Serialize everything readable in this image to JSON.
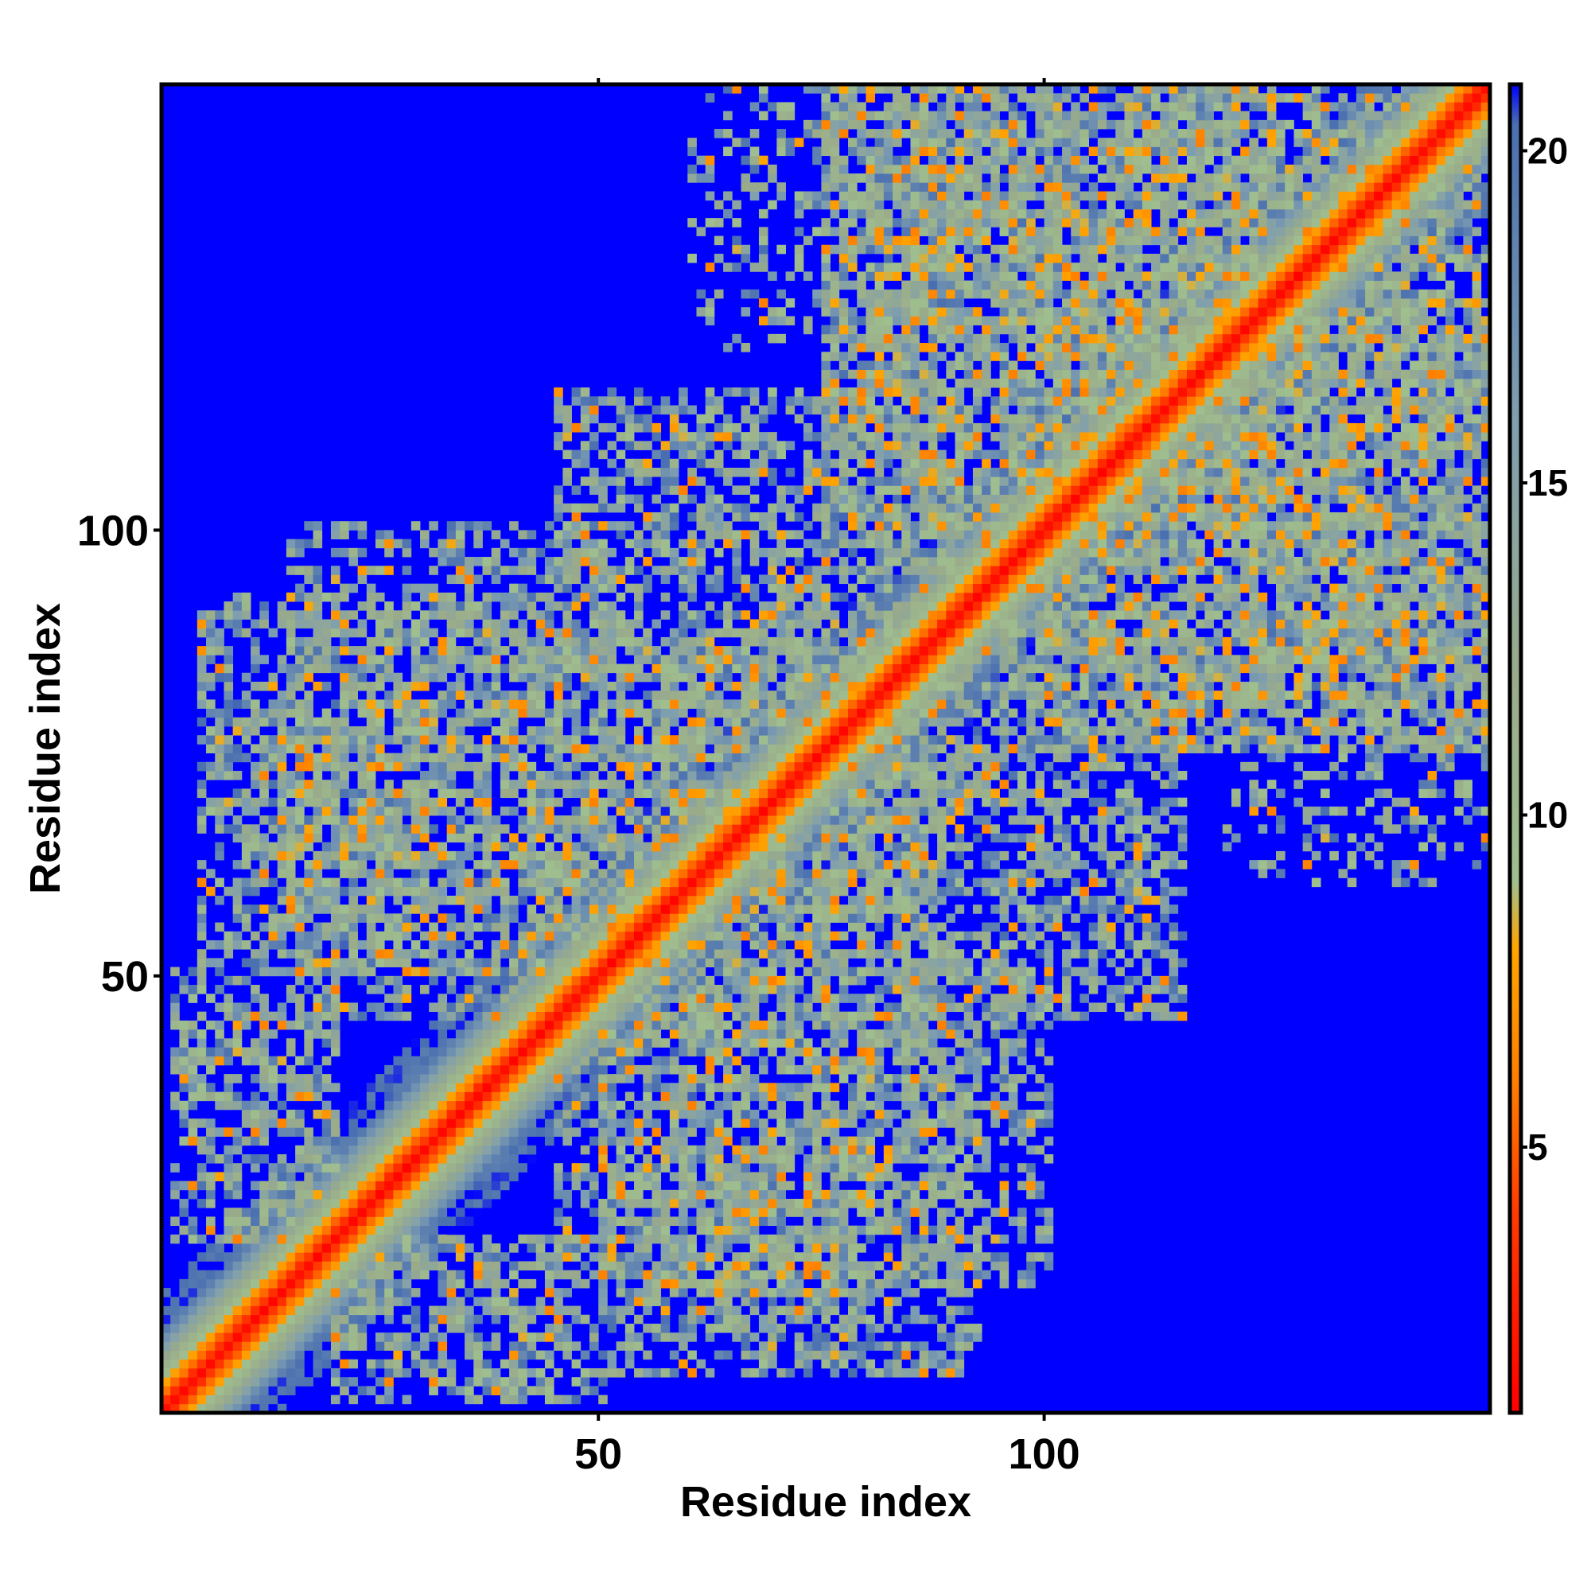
{
  "chart_data": {
    "type": "heatmap",
    "title": "",
    "xlabel": "Residue index",
    "ylabel": "Residue index",
    "xlim": [
      1,
      149
    ],
    "ylim": [
      1,
      149
    ],
    "x_ticks": [
      50,
      100
    ],
    "y_ticks": [
      50,
      100
    ],
    "x_tick_labels": [
      "50",
      "100"
    ],
    "y_tick_labels": [
      "50",
      "100"
    ],
    "colorbar": {
      "range": [
        1,
        21
      ],
      "ticks": [
        5,
        10,
        15,
        20
      ],
      "tick_labels": [
        "5",
        "10",
        "15",
        "20"
      ],
      "stops": [
        {
          "value": 1,
          "color": "#ff0000"
        },
        {
          "value": 4,
          "color": "#ff3a00"
        },
        {
          "value": 6,
          "color": "#ff7f00"
        },
        {
          "value": 8,
          "color": "#ffa500"
        },
        {
          "value": 9,
          "color": "#9fbf8f"
        },
        {
          "value": 12,
          "color": "#9aab8a"
        },
        {
          "value": 16,
          "color": "#7f9fb0"
        },
        {
          "value": 20.4,
          "color": "#4a6fb0"
        },
        {
          "value": 21,
          "color": "#0000ff"
        }
      ]
    },
    "matrix_description": "Symmetric residue-residue distance matrix; diagonal near 1, contacts up to ~20, background (>21) shown blue",
    "diagonal_band": [
      {
        "offset": 0,
        "value": 1.5
      },
      {
        "offset": 1,
        "value": 3.5
      },
      {
        "offset": 2,
        "value": 5.5
      },
      {
        "offset": 3,
        "value": 7.5
      },
      {
        "offset": 4,
        "value": 9.5
      },
      {
        "offset": 5,
        "value": 11
      },
      {
        "offset": 6,
        "value": 13
      },
      {
        "offset": 7,
        "value": 15
      },
      {
        "offset": 8,
        "value": 17
      },
      {
        "offset": 9,
        "value": 19
      }
    ],
    "contact_regions": [
      {
        "x": [
          5,
          45
        ],
        "y": [
          50,
          92
        ],
        "density": 0.55
      },
      {
        "x": [
          2,
          20
        ],
        "y": [
          20,
          50
        ],
        "density": 0.6
      },
      {
        "x": [
          45,
          100
        ],
        "y": [
          15,
          50
        ],
        "density": 0.45
      },
      {
        "x": [
          45,
          90
        ],
        "y": [
          50,
          115
        ],
        "density": 0.55
      },
      {
        "x": [
          75,
          120
        ],
        "y": [
          95,
          145
        ],
        "density": 0.5
      },
      {
        "x": [
          100,
          149
        ],
        "y": [
          75,
          125
        ],
        "density": 0.5
      },
      {
        "x": [
          85,
          149
        ],
        "y": [
          120,
          149
        ],
        "density": 0.45
      },
      {
        "x": [
          55,
          80
        ],
        "y": [
          10,
          30
        ],
        "density": 0.35
      },
      {
        "x": [
          120,
          149
        ],
        "y": [
          60,
          85
        ],
        "density": 0.3
      }
    ]
  }
}
